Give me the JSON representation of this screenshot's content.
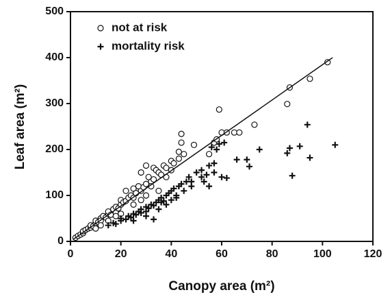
{
  "chart_data": {
    "type": "scatter",
    "x_label": "Canopy area (m²)",
    "y_label": "Leaf area (m²)",
    "xlim": [
      0,
      120
    ],
    "xticks": [
      0,
      20,
      40,
      60,
      80,
      100,
      120
    ],
    "ylim": [
      0,
      500
    ],
    "yticks": [
      0,
      100,
      200,
      300,
      400,
      500
    ],
    "legend": "upper left",
    "series": [
      {
        "name": "not at risk",
        "marker": "circle",
        "color": "#111111",
        "x": [
          2,
          3,
          4,
          5,
          5,
          6,
          7,
          8,
          8,
          9,
          10,
          10,
          11,
          12,
          12,
          13,
          14,
          15,
          15,
          16,
          17,
          18,
          18,
          19,
          20,
          20,
          21,
          22,
          22,
          23,
          24,
          25,
          25,
          26,
          27,
          28,
          28,
          29,
          30,
          30,
          31,
          32,
          33,
          33,
          34,
          35,
          36,
          37,
          38,
          38,
          40,
          40,
          41,
          43,
          43,
          44,
          44,
          45,
          49,
          55,
          57,
          58,
          59,
          60,
          62,
          65,
          67,
          73,
          86,
          87,
          95,
          102,
          25,
          28,
          30,
          32,
          35,
          20,
          18,
          15,
          12,
          10
        ],
        "values": [
          8,
          12,
          15,
          18,
          22,
          25,
          28,
          30,
          35,
          33,
          40,
          45,
          42,
          50,
          45,
          55,
          52,
          60,
          65,
          58,
          70,
          62,
          75,
          72,
          80,
          90,
          85,
          88,
          110,
          95,
          100,
          115,
          95,
          105,
          120,
          110,
          150,
          118,
          125,
          165,
          140,
          130,
          135,
          160,
          155,
          150,
          145,
          165,
          160,
          140,
          175,
          155,
          170,
          195,
          180,
          234,
          215,
          190,
          210,
          190,
          215,
          222,
          287,
          237,
          237,
          237,
          237,
          254,
          299,
          335,
          354,
          390,
          80,
          90,
          100,
          120,
          110,
          60,
          55,
          45,
          35,
          28
        ]
      },
      {
        "name": "mortality risk",
        "marker": "plus",
        "color": "#111111",
        "x": [
          15,
          17,
          18,
          20,
          20,
          22,
          23,
          24,
          25,
          25,
          26,
          27,
          28,
          28,
          30,
          30,
          31,
          32,
          33,
          33,
          34,
          35,
          35,
          36,
          37,
          38,
          38,
          39,
          40,
          40,
          41,
          42,
          43,
          44,
          45,
          46,
          47,
          48,
          50,
          52,
          53,
          54,
          55,
          55,
          56,
          57,
          57,
          58,
          59,
          60,
          61,
          62,
          66,
          70,
          71,
          75,
          86,
          87,
          88,
          91,
          94,
          95,
          105,
          30,
          36,
          42,
          48,
          52
        ],
        "values": [
          35,
          40,
          38,
          45,
          50,
          48,
          55,
          52,
          60,
          45,
          58,
          65,
          62,
          70,
          55,
          75,
          72,
          80,
          78,
          48,
          85,
          90,
          70,
          95,
          88,
          100,
          80,
          105,
          110,
          90,
          115,
          100,
          120,
          125,
          110,
          130,
          140,
          120,
          150,
          140,
          130,
          145,
          165,
          120,
          205,
          150,
          170,
          200,
          212,
          140,
          215,
          138,
          178,
          178,
          163,
          200,
          192,
          203,
          143,
          207,
          254,
          182,
          210,
          65,
          85,
          95,
          130,
          155
        ]
      }
    ],
    "fit_line": {
      "x": [
        1,
        104
      ],
      "values": [
        4,
        400
      ]
    }
  }
}
